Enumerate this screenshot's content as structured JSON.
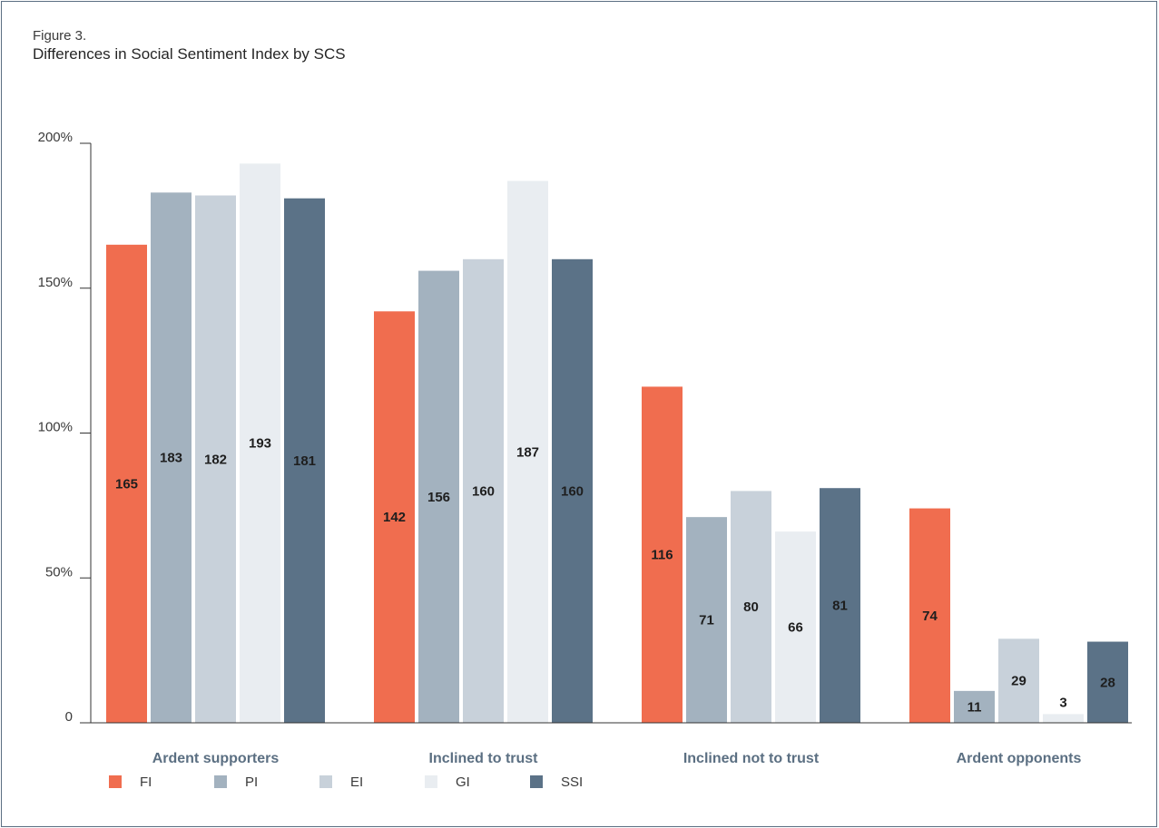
{
  "figure": {
    "label": "Figure 3.",
    "title": "Differences in Social Sentiment Index by SCS"
  },
  "chart_data": {
    "type": "bar",
    "categories": [
      "Ardent supporters",
      "Inclined to trust",
      "Inclined not to trust",
      "Ardent opponents"
    ],
    "series": [
      {
        "name": "FI",
        "color": "#f06d4f",
        "values": [
          165,
          142,
          116,
          74
        ]
      },
      {
        "name": "PI",
        "color": "#a3b2bf",
        "values": [
          183,
          156,
          71,
          11
        ]
      },
      {
        "name": "EI",
        "color": "#c8d1da",
        "values": [
          182,
          160,
          80,
          29
        ]
      },
      {
        "name": "GI",
        "color": "#e9edf1",
        "values": [
          193,
          187,
          66,
          3
        ]
      },
      {
        "name": "SSI",
        "color": "#5b7287",
        "values": [
          181,
          160,
          81,
          28
        ]
      }
    ],
    "data_labels": [
      [
        "165",
        "142",
        "116",
        "74"
      ],
      [
        "183",
        "156",
        "71",
        "11"
      ],
      [
        "182",
        "160",
        "80",
        "29"
      ],
      [
        "193",
        "187",
        "66",
        "3"
      ],
      [
        "181",
        "160",
        "81",
        "28"
      ]
    ],
    "ylim": [
      0,
      200
    ],
    "yticks": [
      {
        "value": 0,
        "label": "0"
      },
      {
        "value": 50,
        "label": "50%"
      },
      {
        "value": 100,
        "label": "100%"
      },
      {
        "value": 150,
        "label": "150%"
      },
      {
        "value": 200,
        "label": "200%"
      }
    ],
    "xlabel": "",
    "ylabel": "",
    "legend_position": "bottom-left",
    "grid": false
  }
}
